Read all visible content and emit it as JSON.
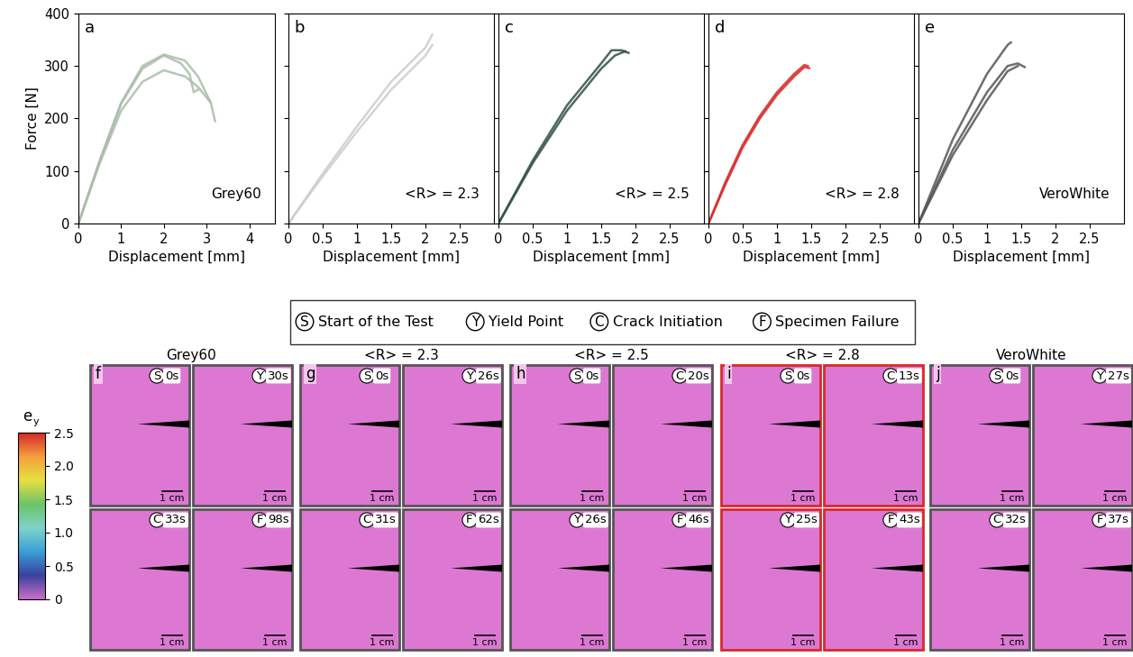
{
  "chart_data": [
    {
      "type": "line",
      "panel": "a",
      "annotation": "Grey60",
      "xlabel": "Displacement [mm]",
      "ylabel": "Force [N]",
      "xlim": [
        0,
        4.6
      ],
      "ylim": [
        0,
        400
      ],
      "xticks": [
        0,
        1,
        2,
        3,
        4
      ],
      "yticks": [
        0,
        100,
        200,
        300,
        400
      ],
      "color": "#a9bda9",
      "line_style": "solid",
      "series": [
        {
          "x": [
            0,
            0.5,
            1,
            1.5,
            2,
            2.5,
            2.8,
            3.1,
            3.2
          ],
          "values": [
            0,
            120,
            230,
            300,
            322,
            310,
            280,
            230,
            195
          ]
        },
        {
          "x": [
            0,
            0.5,
            1,
            1.5,
            2,
            2.5,
            2.8,
            3.0,
            3.1
          ],
          "values": [
            0,
            115,
            215,
            270,
            292,
            280,
            260,
            240,
            230
          ]
        },
        {
          "x": [
            0,
            0.5,
            1,
            1.5,
            2,
            2.4,
            2.6,
            2.7,
            2.8
          ],
          "values": [
            0,
            120,
            228,
            295,
            320,
            305,
            285,
            250,
            255
          ]
        }
      ]
    },
    {
      "type": "line",
      "panel": "b",
      "annotation": "<R> = 2.3",
      "xlabel": "Displacement [mm]",
      "xlim": [
        0,
        3
      ],
      "ylim": [
        0,
        400
      ],
      "xticks": [
        0,
        0.5,
        1,
        1.5,
        2,
        2.5
      ],
      "yticks": [
        0,
        100,
        200,
        300,
        400
      ],
      "tick_labels": "x",
      "color": "#c9cfc9",
      "line_style": "solid",
      "series": [
        {
          "x": [
            0,
            0.5,
            1,
            1.5,
            2,
            2.1
          ],
          "values": [
            0,
            95,
            185,
            270,
            335,
            360
          ]
        },
        {
          "x": [
            0,
            0.5,
            1,
            1.5,
            2,
            2.1
          ],
          "values": [
            0,
            90,
            175,
            255,
            320,
            340
          ]
        }
      ]
    },
    {
      "type": "line",
      "panel": "c",
      "annotation": "<R> = 2.5",
      "xlabel": "Displacement [mm]",
      "xlim": [
        0,
        3
      ],
      "ylim": [
        0,
        400
      ],
      "xticks": [
        0,
        0.5,
        1,
        1.5,
        2,
        2.5
      ],
      "yticks": [
        0,
        100,
        200,
        300,
        400
      ],
      "tick_labels": "x",
      "color": "#2f4f45",
      "line_style": "solid",
      "series": [
        {
          "x": [
            0,
            0.5,
            1,
            1.5,
            1.65,
            1.8,
            1.9
          ],
          "values": [
            0,
            120,
            225,
            305,
            330,
            330,
            325
          ]
        },
        {
          "x": [
            0,
            0.5,
            1,
            1.5,
            1.7,
            1.85
          ],
          "values": [
            0,
            115,
            215,
            295,
            320,
            328
          ]
        }
      ]
    },
    {
      "type": "line",
      "panel": "d",
      "annotation": "<R> = 2.8",
      "xlabel": "Displacement [mm]",
      "xlim": [
        0,
        3
      ],
      "ylim": [
        0,
        400
      ],
      "xticks": [
        0,
        0.5,
        1,
        1.5,
        2,
        2.5
      ],
      "yticks": [
        0,
        100,
        200,
        300,
        400
      ],
      "tick_labels": "x",
      "color": "#d62a2a",
      "line_style": "solid",
      "series": [
        {
          "x": [
            0,
            0.25,
            0.5,
            0.75,
            1,
            1.25,
            1.4,
            1.45
          ],
          "values": [
            0,
            80,
            150,
            205,
            250,
            285,
            302,
            300
          ]
        },
        {
          "x": [
            0,
            0.25,
            0.5,
            0.75,
            1,
            1.25,
            1.4,
            1.47
          ],
          "values": [
            0,
            75,
            145,
            200,
            245,
            280,
            298,
            296
          ]
        }
      ]
    },
    {
      "type": "line",
      "panel": "e",
      "annotation": "VeroWhite",
      "xlabel": "Displacement [mm]",
      "xlim": [
        0,
        3
      ],
      "ylim": [
        0,
        400
      ],
      "xticks": [
        0,
        0.5,
        1,
        1.5,
        2,
        2.5
      ],
      "yticks": [
        0,
        100,
        200,
        300,
        400
      ],
      "tick_labels": "x",
      "color": "#555555",
      "line_style": "solid",
      "series": [
        {
          "x": [
            0,
            0.5,
            1,
            1.3,
            1.35
          ],
          "values": [
            0,
            160,
            285,
            340,
            345
          ]
        },
        {
          "x": [
            0,
            0.5,
            1,
            1.3,
            1.45,
            1.55
          ],
          "values": [
            0,
            140,
            250,
            300,
            305,
            298
          ]
        },
        {
          "x": [
            0,
            0.5,
            1,
            1.3,
            1.45
          ],
          "values": [
            0,
            130,
            235,
            290,
            300
          ]
        }
      ]
    }
  ],
  "event_legend": [
    {
      "symbol": "S",
      "text": "Start of the Test"
    },
    {
      "symbol": "Y",
      "text": "Yield Point"
    },
    {
      "symbol": "C",
      "text": "Crack Initiation"
    },
    {
      "symbol": "F",
      "text": "Specimen Failure"
    }
  ],
  "colorbar": {
    "label": "e",
    "subscript": "y",
    "range": [
      0,
      2.5
    ],
    "ticks": [
      0,
      0.5,
      {
        "value": 1,
        "label": "1.0"
      },
      1.5,
      {
        "value": 2,
        "label": "2.0"
      },
      2.5
    ]
  },
  "dic_panels": [
    {
      "panel": "f",
      "title": "Grey60",
      "color": "#555555",
      "frames": [
        {
          "event": "S",
          "time": "0s",
          "scale": "1 cm"
        },
        {
          "event": "Y",
          "time": "30s",
          "scale": "1 cm"
        },
        {
          "event": "C",
          "time": "33s",
          "scale": "1 cm"
        },
        {
          "event": "F",
          "time": "98s",
          "scale": "1 cm"
        }
      ]
    },
    {
      "panel": "g",
      "title": "<R> = 2.3",
      "color": "#555555",
      "frames": [
        {
          "event": "S",
          "time": "0s",
          "scale": "1 cm"
        },
        {
          "event": "Y",
          "time": "26s",
          "scale": "1 cm"
        },
        {
          "event": "C",
          "time": "31s",
          "scale": "1 cm"
        },
        {
          "event": "F",
          "time": "62s",
          "scale": "1 cm"
        }
      ]
    },
    {
      "panel": "h",
      "title": "<R> = 2.5",
      "color": "#555555",
      "frames": [
        {
          "event": "S",
          "time": "0s",
          "scale": "1 cm"
        },
        {
          "event": "C",
          "time": "20s",
          "scale": "1 cm"
        },
        {
          "event": "Y",
          "time": "26s",
          "scale": "1 cm"
        },
        {
          "event": "F",
          "time": "46s",
          "scale": "1 cm"
        }
      ]
    },
    {
      "panel": "i",
      "title": "<R> = 2.8",
      "color": "#d62a2a",
      "frames": [
        {
          "event": "S",
          "time": "0s",
          "scale": "1 cm"
        },
        {
          "event": "C",
          "time": "13s",
          "scale": "1 cm"
        },
        {
          "event": "Y",
          "time": "25s",
          "scale": "1 cm"
        },
        {
          "event": "F",
          "time": "43s",
          "scale": "1 cm"
        }
      ]
    },
    {
      "panel": "j",
      "title": "VeroWhite",
      "color": "#555555",
      "frames": [
        {
          "event": "S",
          "time": "0s",
          "scale": "1 cm"
        },
        {
          "event": "Y",
          "time": "27s",
          "scale": "1 cm"
        },
        {
          "event": "C",
          "time": "32s",
          "scale": "1 cm"
        },
        {
          "event": "F",
          "time": "37s",
          "scale": "1 cm"
        }
      ]
    }
  ]
}
